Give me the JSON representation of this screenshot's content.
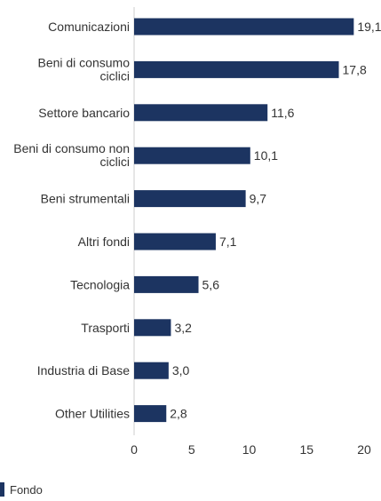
{
  "chart_data": {
    "type": "bar",
    "orientation": "horizontal",
    "categories": [
      "Comunicazioni",
      "Beni di consumo ciclici",
      "Settore bancario",
      "Beni di consumo non ciclici",
      "Beni strumentali",
      "Altri fondi",
      "Tecnologia",
      "Trasporti",
      "Industria di Base",
      "Other Utilities"
    ],
    "series": [
      {
        "name": "Fondo",
        "values": [
          19.1,
          17.8,
          11.6,
          10.1,
          9.7,
          7.1,
          5.6,
          3.2,
          3.0,
          2.8
        ],
        "value_labels": [
          "19,1",
          "17,8",
          "11,6",
          "10,1",
          "9,7",
          "7,1",
          "5,6",
          "3,2",
          "3,0",
          "2,8"
        ],
        "color": "#1c3461"
      }
    ],
    "xlim": [
      0,
      20
    ],
    "x_ticks": [
      0,
      5,
      10,
      15,
      20
    ],
    "x_tick_labels": [
      "0",
      "5",
      "10",
      "15",
      "20"
    ],
    "title": "",
    "xlabel": "",
    "ylabel": "",
    "grid": false,
    "legend": {
      "position": "bottom-left",
      "entries": [
        "Fondo"
      ]
    }
  }
}
